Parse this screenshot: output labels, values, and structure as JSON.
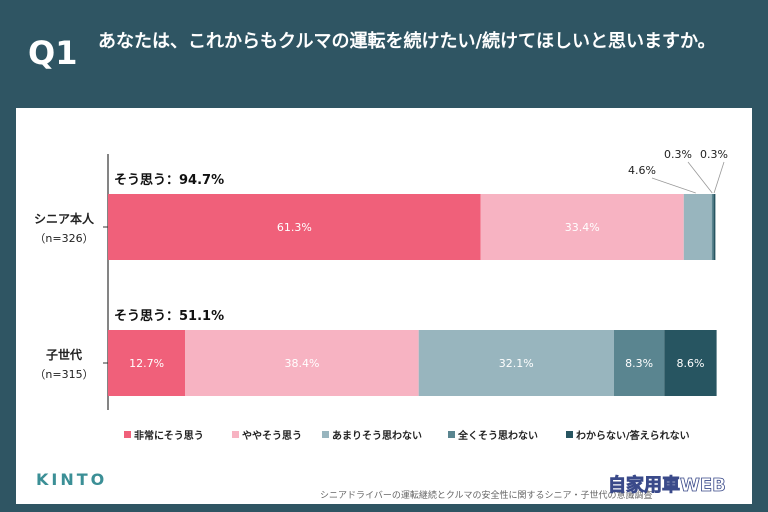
{
  "header": {
    "qnum": "Q1",
    "question": "あなたは、これからもクルマの運転を続けたい/続けてほしいと思いますか。"
  },
  "footer": {
    "logo": "KINTO",
    "note": "シニアドライバーの運転継続とクルマの安全性に関するシニア・子世代の意識調査"
  },
  "watermark": {
    "text": "自家用車WEB"
  },
  "colors": {
    "header_bg": "#2f5563",
    "panel_bg": "#ffffff",
    "axis": "#333333"
  },
  "chart_data": {
    "type": "bar",
    "orientation": "horizontal",
    "stacked": true,
    "categories": [
      "シニア本人",
      "子世代"
    ],
    "category_sub": [
      "（n=326）",
      "（n=315）"
    ],
    "summaries": [
      "そう思う：94.7%",
      "そう思う：51.1%"
    ],
    "series": [
      {
        "name": "非常にそう思う",
        "color": "#f0607a",
        "values": [
          61.3,
          12.7
        ],
        "label_color": "#ffffff"
      },
      {
        "name": "ややそう思う",
        "color": "#f7b3c2",
        "values": [
          33.4,
          38.4
        ],
        "label_color": "#ffffff"
      },
      {
        "name": "あまりそう思わない",
        "color": "#98b5be",
        "values": [
          4.6,
          32.1
        ],
        "label_color": "#ffffff"
      },
      {
        "name": "全くそう思わない",
        "color": "#5a8590",
        "values": [
          0.3,
          8.3
        ],
        "label_color": "#ffffff"
      },
      {
        "name": "わからない/答えられない",
        "color": "#275561",
        "values": [
          0.3,
          8.6
        ],
        "label_color": "#ffffff"
      }
    ],
    "value_labels": [
      [
        "61.3%",
        "33.4%",
        "4.6%",
        "0.3%",
        "0.3%"
      ],
      [
        "12.7%",
        "38.4%",
        "32.1%",
        "8.3%",
        "8.6%"
      ]
    ],
    "callout_series_row0": [
      2,
      3,
      4
    ],
    "xlim": [
      0,
      100
    ],
    "legend_position": "bottom"
  }
}
